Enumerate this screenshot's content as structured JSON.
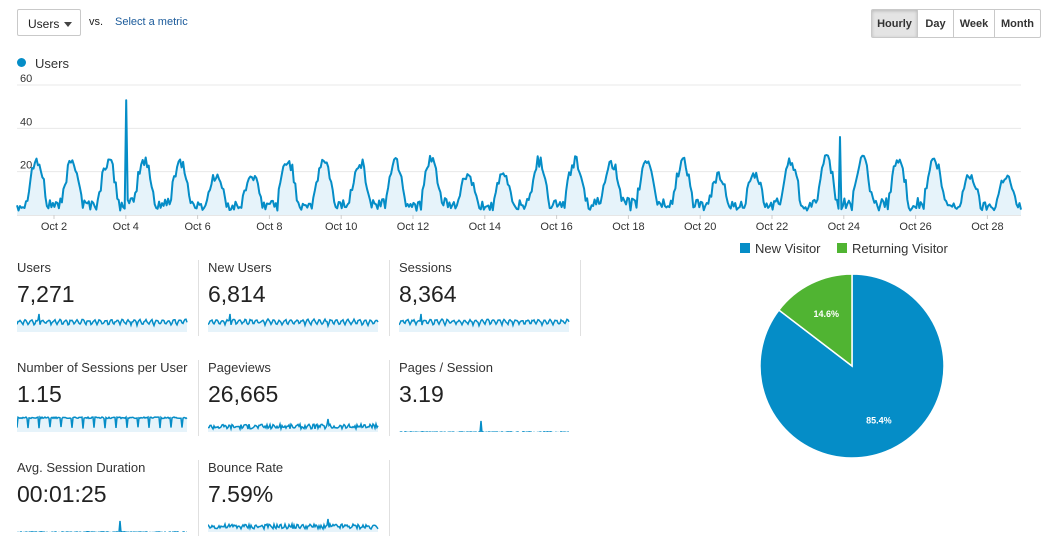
{
  "controls": {
    "metric_select": "Users",
    "vs_label": "vs.",
    "select_metric_link": "Select a metric",
    "time_buttons": [
      "Hourly",
      "Day",
      "Week",
      "Month"
    ],
    "active_time_button": "Hourly"
  },
  "chart_data": [
    {
      "type": "area",
      "series": [
        {
          "name": "Users",
          "color": "#058dc7"
        }
      ],
      "legend": "top-left",
      "ylim": [
        0,
        60
      ],
      "y_ticks": [
        "60",
        "40",
        "20"
      ],
      "x_tick_labels": [
        "Oct 2",
        "Oct 4",
        "Oct 6",
        "Oct 8",
        "Oct 10",
        "Oct 12",
        "Oct 14",
        "Oct 16",
        "Oct 18",
        "Oct 20",
        "Oct 22",
        "Oct 24",
        "Oct 26",
        "Oct 28"
      ],
      "grid": true,
      "peaks": [
        {
          "date": "Oct 4",
          "value": 53
        },
        {
          "date": "Oct 24",
          "value": 36
        }
      ]
    },
    {
      "type": "pie",
      "legend": "top",
      "slices": [
        {
          "name": "New Visitor",
          "value": 85.4,
          "label": "85.4%",
          "color": "#058dc7"
        },
        {
          "name": "Returning Visitor",
          "value": 14.6,
          "label": "14.6%",
          "color": "#50b432"
        }
      ]
    }
  ],
  "metrics": [
    {
      "title": "Users",
      "value": "7,271"
    },
    {
      "title": "New Users",
      "value": "6,814"
    },
    {
      "title": "Sessions",
      "value": "8,364"
    },
    {
      "title": "Number of Sessions per User",
      "value": "1.15"
    },
    {
      "title": "Pageviews",
      "value": "26,665"
    },
    {
      "title": "Pages / Session",
      "value": "3.19"
    },
    {
      "title": "Avg. Session Duration",
      "value": "00:01:25"
    },
    {
      "title": "Bounce Rate",
      "value": "7.59%"
    }
  ],
  "colors": {
    "accent": "#058dc7",
    "fill": "#e6f3fa",
    "returning": "#50b432"
  }
}
